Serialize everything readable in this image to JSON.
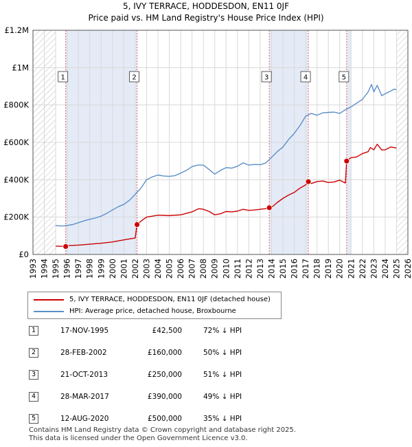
{
  "title_line1": "5, IVY TERRACE, HODDESDON, EN11 0JF",
  "title_line2": "Price paid vs. HM Land Registry's House Price Index (HPI)",
  "chart_data": {
    "type": "line",
    "title": "5, IVY TERRACE, HODDESDON, EN11 0JF — Price paid vs. HM Land Registry's House Price Index (HPI)",
    "xlim": [
      1993,
      2026
    ],
    "ylim": [
      0,
      1200000
    ],
    "x_ticks": [
      1993,
      1994,
      1995,
      1996,
      1997,
      1998,
      1999,
      2000,
      2001,
      2002,
      2003,
      2004,
      2005,
      2006,
      2007,
      2008,
      2009,
      2010,
      2011,
      2012,
      2013,
      2014,
      2015,
      2016,
      2017,
      2018,
      2019,
      2020,
      2021,
      2022,
      2023,
      2024,
      2025,
      2026
    ],
    "y_ticks": [
      {
        "value": 0,
        "label": "£0"
      },
      {
        "value": 200000,
        "label": "£200K"
      },
      {
        "value": 400000,
        "label": "£400K"
      },
      {
        "value": 600000,
        "label": "£600K"
      },
      {
        "value": 800000,
        "label": "£800K"
      },
      {
        "value": 1000000,
        "label": "£1M"
      },
      {
        "value": 1200000,
        "label": "£1.2M"
      }
    ],
    "hatched_ranges": [
      [
        1993,
        1995.0
      ],
      [
        2025.0,
        2026
      ]
    ],
    "shaded_ranges": [
      [
        1995.88,
        2002.16
      ],
      [
        2013.8,
        2017.24
      ],
      [
        2020.61,
        2021.0
      ]
    ],
    "series": [
      {
        "name": "5, IVY TERRACE, HODDESDON, EN11 0JF (detached house)",
        "color": "#cc0000",
        "x": [
          1995.0,
          1995.5,
          1995.88,
          1996.0,
          1997.0,
          1998.0,
          1999.0,
          2000.0,
          2001.0,
          2002.0,
          2002.16,
          2002.5,
          2003.0,
          2004.0,
          2005.0,
          2006.0,
          2007.0,
          2007.6,
          2008.0,
          2008.5,
          2009.0,
          2009.5,
          2010.0,
          2010.5,
          2011.0,
          2011.5,
          2012.0,
          2012.5,
          2013.0,
          2013.5,
          2013.8,
          2014.0,
          2014.5,
          2015.0,
          2015.5,
          2016.0,
          2016.5,
          2017.0,
          2017.24,
          2017.5,
          2018.0,
          2018.5,
          2019.0,
          2019.5,
          2020.0,
          2020.5,
          2020.61,
          2020.8,
          2021.0,
          2021.5,
          2022.0,
          2022.5,
          2022.7,
          2023.0,
          2023.3,
          2023.7,
          2024.0,
          2024.5,
          2025.0
        ],
        "y": [
          45000,
          43500,
          42500,
          47000,
          50000,
          55000,
          60000,
          67000,
          78000,
          88000,
          160000,
          178000,
          200000,
          210000,
          208000,
          212000,
          228000,
          245000,
          242000,
          230000,
          212000,
          218000,
          230000,
          228000,
          232000,
          242000,
          236000,
          238000,
          242000,
          245000,
          250000,
          252000,
          278000,
          300000,
          318000,
          332000,
          355000,
          372000,
          390000,
          380000,
          390000,
          393000,
          385000,
          388000,
          398000,
          382000,
          500000,
          510000,
          518000,
          522000,
          540000,
          550000,
          572000,
          560000,
          590000,
          560000,
          560000,
          575000,
          570000
        ],
        "markers": [
          [
            1995.88,
            42500
          ],
          [
            2002.16,
            160000
          ],
          [
            2013.8,
            250000
          ],
          [
            2017.24,
            390000
          ],
          [
            2020.61,
            500000
          ]
        ]
      },
      {
        "name": "HPI: Average price, detached house, Broxbourne",
        "color": "#5b8fc7",
        "x": [
          1995.0,
          1995.5,
          1996.0,
          1996.5,
          1997.0,
          1997.5,
          1998.0,
          1998.5,
          1999.0,
          1999.5,
          2000.0,
          2000.5,
          2001.0,
          2001.5,
          2002.0,
          2002.5,
          2003.0,
          2003.5,
          2004.0,
          2004.5,
          2005.0,
          2005.5,
          2006.0,
          2006.5,
          2007.0,
          2007.5,
          2008.0,
          2008.5,
          2009.0,
          2009.5,
          2010.0,
          2010.5,
          2011.0,
          2011.5,
          2012.0,
          2012.5,
          2013.0,
          2013.5,
          2014.0,
          2014.5,
          2015.0,
          2015.5,
          2016.0,
          2016.5,
          2017.0,
          2017.5,
          2018.0,
          2018.5,
          2019.0,
          2019.5,
          2020.0,
          2020.5,
          2021.0,
          2021.5,
          2022.0,
          2022.5,
          2022.8,
          2023.0,
          2023.3,
          2023.7,
          2024.0,
          2024.5,
          2024.8,
          2025.0
        ],
        "y": [
          155000,
          152000,
          155000,
          160000,
          170000,
          180000,
          188000,
          195000,
          205000,
          220000,
          238000,
          255000,
          268000,
          290000,
          322000,
          355000,
          400000,
          415000,
          425000,
          420000,
          418000,
          422000,
          435000,
          450000,
          470000,
          478000,
          478000,
          455000,
          430000,
          450000,
          465000,
          462000,
          472000,
          490000,
          478000,
          482000,
          480000,
          490000,
          520000,
          550000,
          575000,
          615000,
          648000,
          690000,
          740000,
          755000,
          745000,
          758000,
          760000,
          762000,
          755000,
          775000,
          790000,
          810000,
          830000,
          870000,
          910000,
          870000,
          905000,
          850000,
          860000,
          875000,
          885000,
          882000
        ]
      }
    ],
    "event_labels": [
      "1",
      "2",
      "3",
      "4",
      "5"
    ],
    "legend_position": "below"
  },
  "legend": [
    {
      "label": "5, IVY TERRACE, HODDESDON, EN11 0JF (detached house)",
      "color": "#cc0000"
    },
    {
      "label": "HPI: Average price, detached house, Broxbourne",
      "color": "#5b8fc7"
    }
  ],
  "sales": [
    {
      "num": "1",
      "date": "17-NOV-1995",
      "price": "£42,500",
      "hpi": "72% ↓ HPI"
    },
    {
      "num": "2",
      "date": "28-FEB-2002",
      "price": "£160,000",
      "hpi": "50% ↓ HPI"
    },
    {
      "num": "3",
      "date": "21-OCT-2013",
      "price": "£250,000",
      "hpi": "51% ↓ HPI"
    },
    {
      "num": "4",
      "date": "28-MAR-2017",
      "price": "£390,000",
      "hpi": "49% ↓ HPI"
    },
    {
      "num": "5",
      "date": "12-AUG-2020",
      "price": "£500,000",
      "hpi": "35% ↓ HPI"
    }
  ],
  "footer_line1": "Contains HM Land Registry data © Crown copyright and database right 2025.",
  "footer_line2": "This data is licensed under the Open Government Licence v3.0."
}
